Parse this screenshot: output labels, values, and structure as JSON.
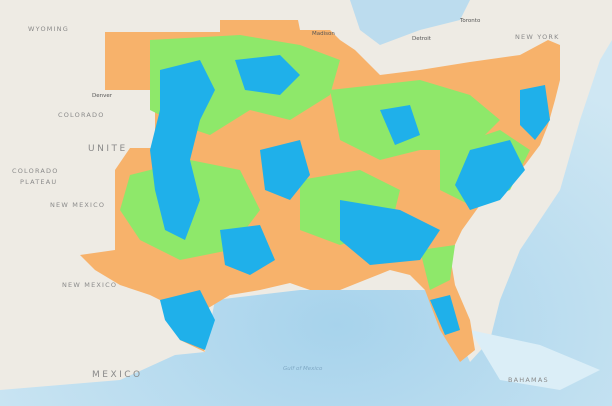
{
  "map": {
    "labels": [
      "WYOMING",
      "COLORADO",
      "UNITE",
      "COLORADO",
      "PLATEAU",
      "NEW MEXICO",
      "NEW MEXICO",
      "MEXICO",
      "NEW YORK",
      "Gulf of Mexico",
      "BAHAMAS",
      "Denver",
      "Madison",
      "Detroit",
      "Toronto"
    ]
  }
}
